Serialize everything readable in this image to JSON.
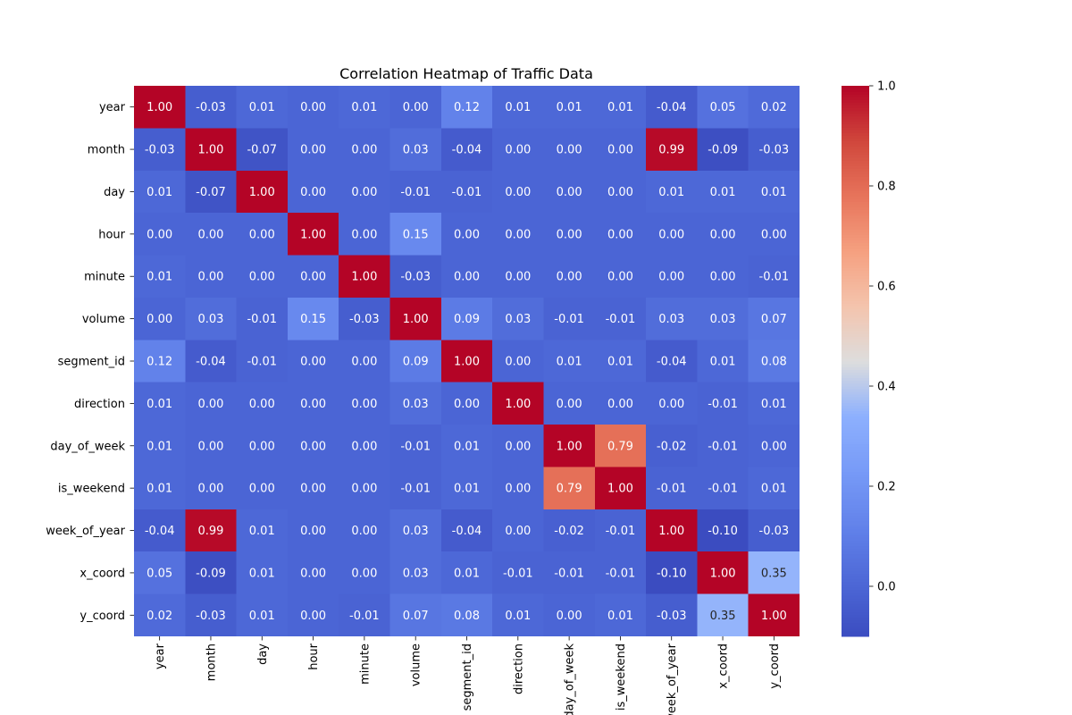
{
  "chart_data": {
    "type": "heatmap",
    "title": "Correlation Heatmap of Traffic Data",
    "xlabel": "",
    "ylabel": "",
    "colormap": "coolwarm",
    "value_format": "0.00",
    "color_range": [
      -0.1,
      1.0
    ],
    "colorbar_ticks": [
      "0.0",
      "0.2",
      "0.4",
      "0.6",
      "0.8",
      "1.0"
    ],
    "colorbar_tick_values": [
      0.0,
      0.2,
      0.4,
      0.6,
      0.8,
      1.0
    ],
    "rows": [
      "year",
      "month",
      "day",
      "hour",
      "minute",
      "volume",
      "segment_id",
      "direction",
      "day_of_week",
      "is_weekend",
      "week_of_year",
      "x_coord",
      "y_coord"
    ],
    "columns": [
      "year",
      "month",
      "day",
      "hour",
      "minute",
      "volume",
      "segment_id",
      "direction",
      "day_of_week",
      "is_weekend",
      "week_of_year",
      "x_coord",
      "y_coord"
    ],
    "values": [
      [
        1.0,
        -0.03,
        0.01,
        0.0,
        0.01,
        0.0,
        0.12,
        0.01,
        0.01,
        0.01,
        -0.04,
        0.05,
        0.02
      ],
      [
        -0.03,
        1.0,
        -0.07,
        -0.0,
        -0.0,
        0.03,
        -0.04,
        -0.0,
        -0.0,
        -0.0,
        0.99,
        -0.09,
        -0.03
      ],
      [
        0.01,
        -0.07,
        1.0,
        -0.0,
        0.0,
        -0.01,
        -0.01,
        -0.0,
        -0.0,
        -0.0,
        0.01,
        0.01,
        0.01
      ],
      [
        0.0,
        -0.0,
        -0.0,
        1.0,
        -0.0,
        0.15,
        -0.0,
        0.0,
        -0.0,
        0.0,
        -0.0,
        0.0,
        0.0
      ],
      [
        0.01,
        -0.0,
        0.0,
        -0.0,
        1.0,
        -0.03,
        0.0,
        0.0,
        -0.0,
        -0.0,
        -0.0,
        -0.0,
        -0.01
      ],
      [
        0.0,
        0.03,
        -0.01,
        0.15,
        -0.03,
        1.0,
        0.09,
        0.03,
        -0.01,
        -0.01,
        0.03,
        0.03,
        0.07
      ],
      [
        0.12,
        -0.04,
        -0.01,
        -0.0,
        0.0,
        0.09,
        1.0,
        -0.0,
        0.01,
        0.01,
        -0.04,
        0.01,
        0.08
      ],
      [
        0.01,
        -0.0,
        -0.0,
        0.0,
        0.0,
        0.03,
        -0.0,
        1.0,
        -0.0,
        -0.0,
        -0.0,
        -0.01,
        0.01
      ],
      [
        0.01,
        -0.0,
        -0.0,
        -0.0,
        -0.0,
        -0.01,
        0.01,
        -0.0,
        1.0,
        0.79,
        -0.02,
        -0.01,
        0.0
      ],
      [
        0.01,
        -0.0,
        -0.0,
        0.0,
        -0.0,
        -0.01,
        0.01,
        -0.0,
        0.79,
        1.0,
        -0.01,
        -0.01,
        0.01
      ],
      [
        -0.04,
        0.99,
        0.01,
        -0.0,
        -0.0,
        0.03,
        -0.04,
        -0.0,
        -0.02,
        -0.01,
        1.0,
        -0.1,
        -0.03
      ],
      [
        0.05,
        -0.09,
        0.01,
        0.0,
        -0.0,
        0.03,
        0.01,
        -0.01,
        -0.01,
        -0.01,
        -0.1,
        1.0,
        0.35
      ],
      [
        0.02,
        -0.03,
        0.01,
        0.0,
        -0.01,
        0.07,
        0.08,
        0.01,
        0.0,
        0.01,
        -0.03,
        0.35,
        1.0
      ]
    ],
    "grid": false,
    "legend": "colorbar-right"
  }
}
